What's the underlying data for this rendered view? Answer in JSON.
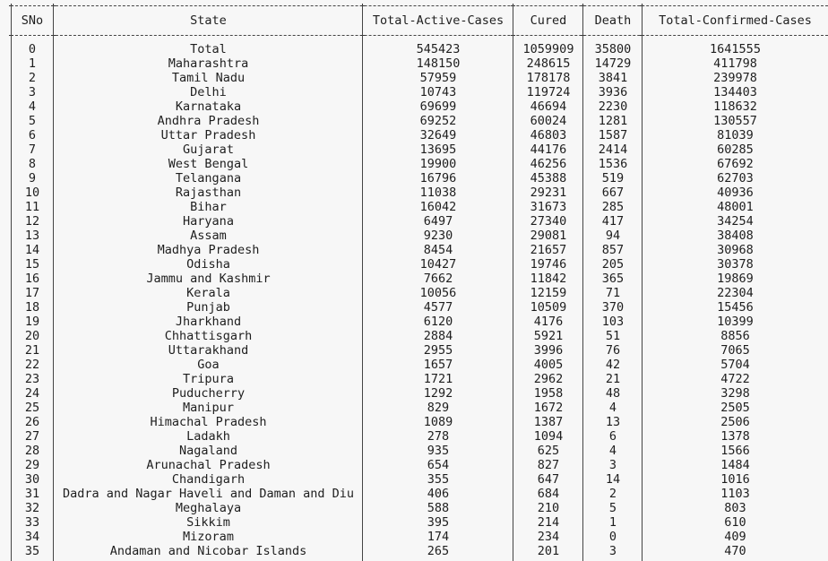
{
  "table": {
    "columns": [
      "SNo",
      "State",
      "Total-Active-Cases",
      "Cured",
      "Death",
      "Total-Confirmed-Cases"
    ],
    "rows": [
      [
        "0",
        "Total",
        "545423",
        "1059909",
        "35800",
        "1641555"
      ],
      [
        "1",
        "Maharashtra",
        "148150",
        "248615",
        "14729",
        "411798"
      ],
      [
        "2",
        "Tamil Nadu",
        "57959",
        "178178",
        "3841",
        "239978"
      ],
      [
        "3",
        "Delhi",
        "10743",
        "119724",
        "3936",
        "134403"
      ],
      [
        "4",
        "Karnataka",
        "69699",
        "46694",
        "2230",
        "118632"
      ],
      [
        "5",
        "Andhra Pradesh",
        "69252",
        "60024",
        "1281",
        "130557"
      ],
      [
        "6",
        "Uttar Pradesh",
        "32649",
        "46803",
        "1587",
        "81039"
      ],
      [
        "7",
        "Gujarat",
        "13695",
        "44176",
        "2414",
        "60285"
      ],
      [
        "8",
        "West Bengal",
        "19900",
        "46256",
        "1536",
        "67692"
      ],
      [
        "9",
        "Telangana",
        "16796",
        "45388",
        "519",
        "62703"
      ],
      [
        "10",
        "Rajasthan",
        "11038",
        "29231",
        "667",
        "40936"
      ],
      [
        "11",
        "Bihar",
        "16042",
        "31673",
        "285",
        "48001"
      ],
      [
        "12",
        "Haryana",
        "6497",
        "27340",
        "417",
        "34254"
      ],
      [
        "13",
        "Assam",
        "9230",
        "29081",
        "94",
        "38408"
      ],
      [
        "14",
        "Madhya Pradesh",
        "8454",
        "21657",
        "857",
        "30968"
      ],
      [
        "15",
        "Odisha",
        "10427",
        "19746",
        "205",
        "30378"
      ],
      [
        "16",
        "Jammu and Kashmir",
        "7662",
        "11842",
        "365",
        "19869"
      ],
      [
        "17",
        "Kerala",
        "10056",
        "12159",
        "71",
        "22304"
      ],
      [
        "18",
        "Punjab",
        "4577",
        "10509",
        "370",
        "15456"
      ],
      [
        "19",
        "Jharkhand",
        "6120",
        "4176",
        "103",
        "10399"
      ],
      [
        "20",
        "Chhattisgarh",
        "2884",
        "5921",
        "51",
        "8856"
      ],
      [
        "21",
        "Uttarakhand",
        "2955",
        "3996",
        "76",
        "7065"
      ],
      [
        "22",
        "Goa",
        "1657",
        "4005",
        "42",
        "5704"
      ],
      [
        "23",
        "Tripura",
        "1721",
        "2962",
        "21",
        "4722"
      ],
      [
        "24",
        "Puducherry",
        "1292",
        "1958",
        "48",
        "3298"
      ],
      [
        "25",
        "Manipur",
        "829",
        "1672",
        "4",
        "2505"
      ],
      [
        "26",
        "Himachal Pradesh",
        "1089",
        "1387",
        "13",
        "2506"
      ],
      [
        "27",
        "Ladakh",
        "278",
        "1094",
        "6",
        "1378"
      ],
      [
        "28",
        "Nagaland",
        "935",
        "625",
        "4",
        "1566"
      ],
      [
        "29",
        "Arunachal Pradesh",
        "654",
        "827",
        "3",
        "1484"
      ],
      [
        "30",
        "Chandigarh",
        "355",
        "647",
        "14",
        "1016"
      ],
      [
        "31",
        "Dadra and Nagar Haveli and Daman and Diu",
        "406",
        "684",
        "2",
        "1103"
      ],
      [
        "32",
        "Meghalaya",
        "588",
        "210",
        "5",
        "803"
      ],
      [
        "33",
        "Sikkim",
        "395",
        "214",
        "1",
        "610"
      ],
      [
        "34",
        "Mizoram",
        "174",
        "234",
        "0",
        "409"
      ],
      [
        "35",
        "Andaman and Nicobar Islands",
        "265",
        "201",
        "3",
        "470"
      ]
    ]
  }
}
